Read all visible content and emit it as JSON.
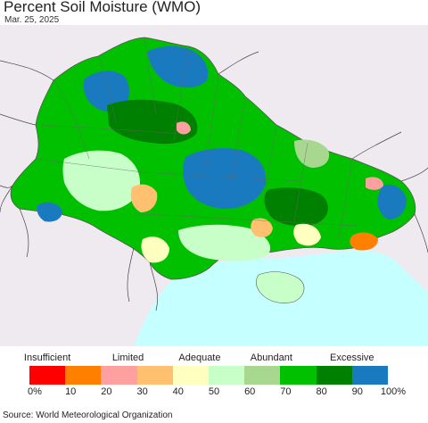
{
  "title": "Percent Soil Moisture (WMO)",
  "date": "Mar. 25, 2025",
  "source": "Source: World Meteorological Organization",
  "legend": {
    "categories": [
      {
        "label": "Insufficient",
        "at": 0.5
      },
      {
        "label": "Limited",
        "at": 2.75
      },
      {
        "label": "Adequate",
        "at": 4.75
      },
      {
        "label": "Abundant",
        "at": 6.75
      },
      {
        "label": "Excessive",
        "at": 9.0
      }
    ],
    "colors": [
      "#ff0000",
      "#ff8000",
      "#ffa0a0",
      "#ffc070",
      "#ffffc0",
      "#c8ffc8",
      "#a8d890",
      "#00c000",
      "#008000",
      "#1a7abf"
    ],
    "ticks": [
      "0%",
      "10",
      "20",
      "30",
      "40",
      "50",
      "60",
      "70",
      "80",
      "90",
      "100%"
    ]
  },
  "map_colors": {
    "land_outside": "#efeaef",
    "sea": "#c6ffff",
    "border": "#555555"
  }
}
